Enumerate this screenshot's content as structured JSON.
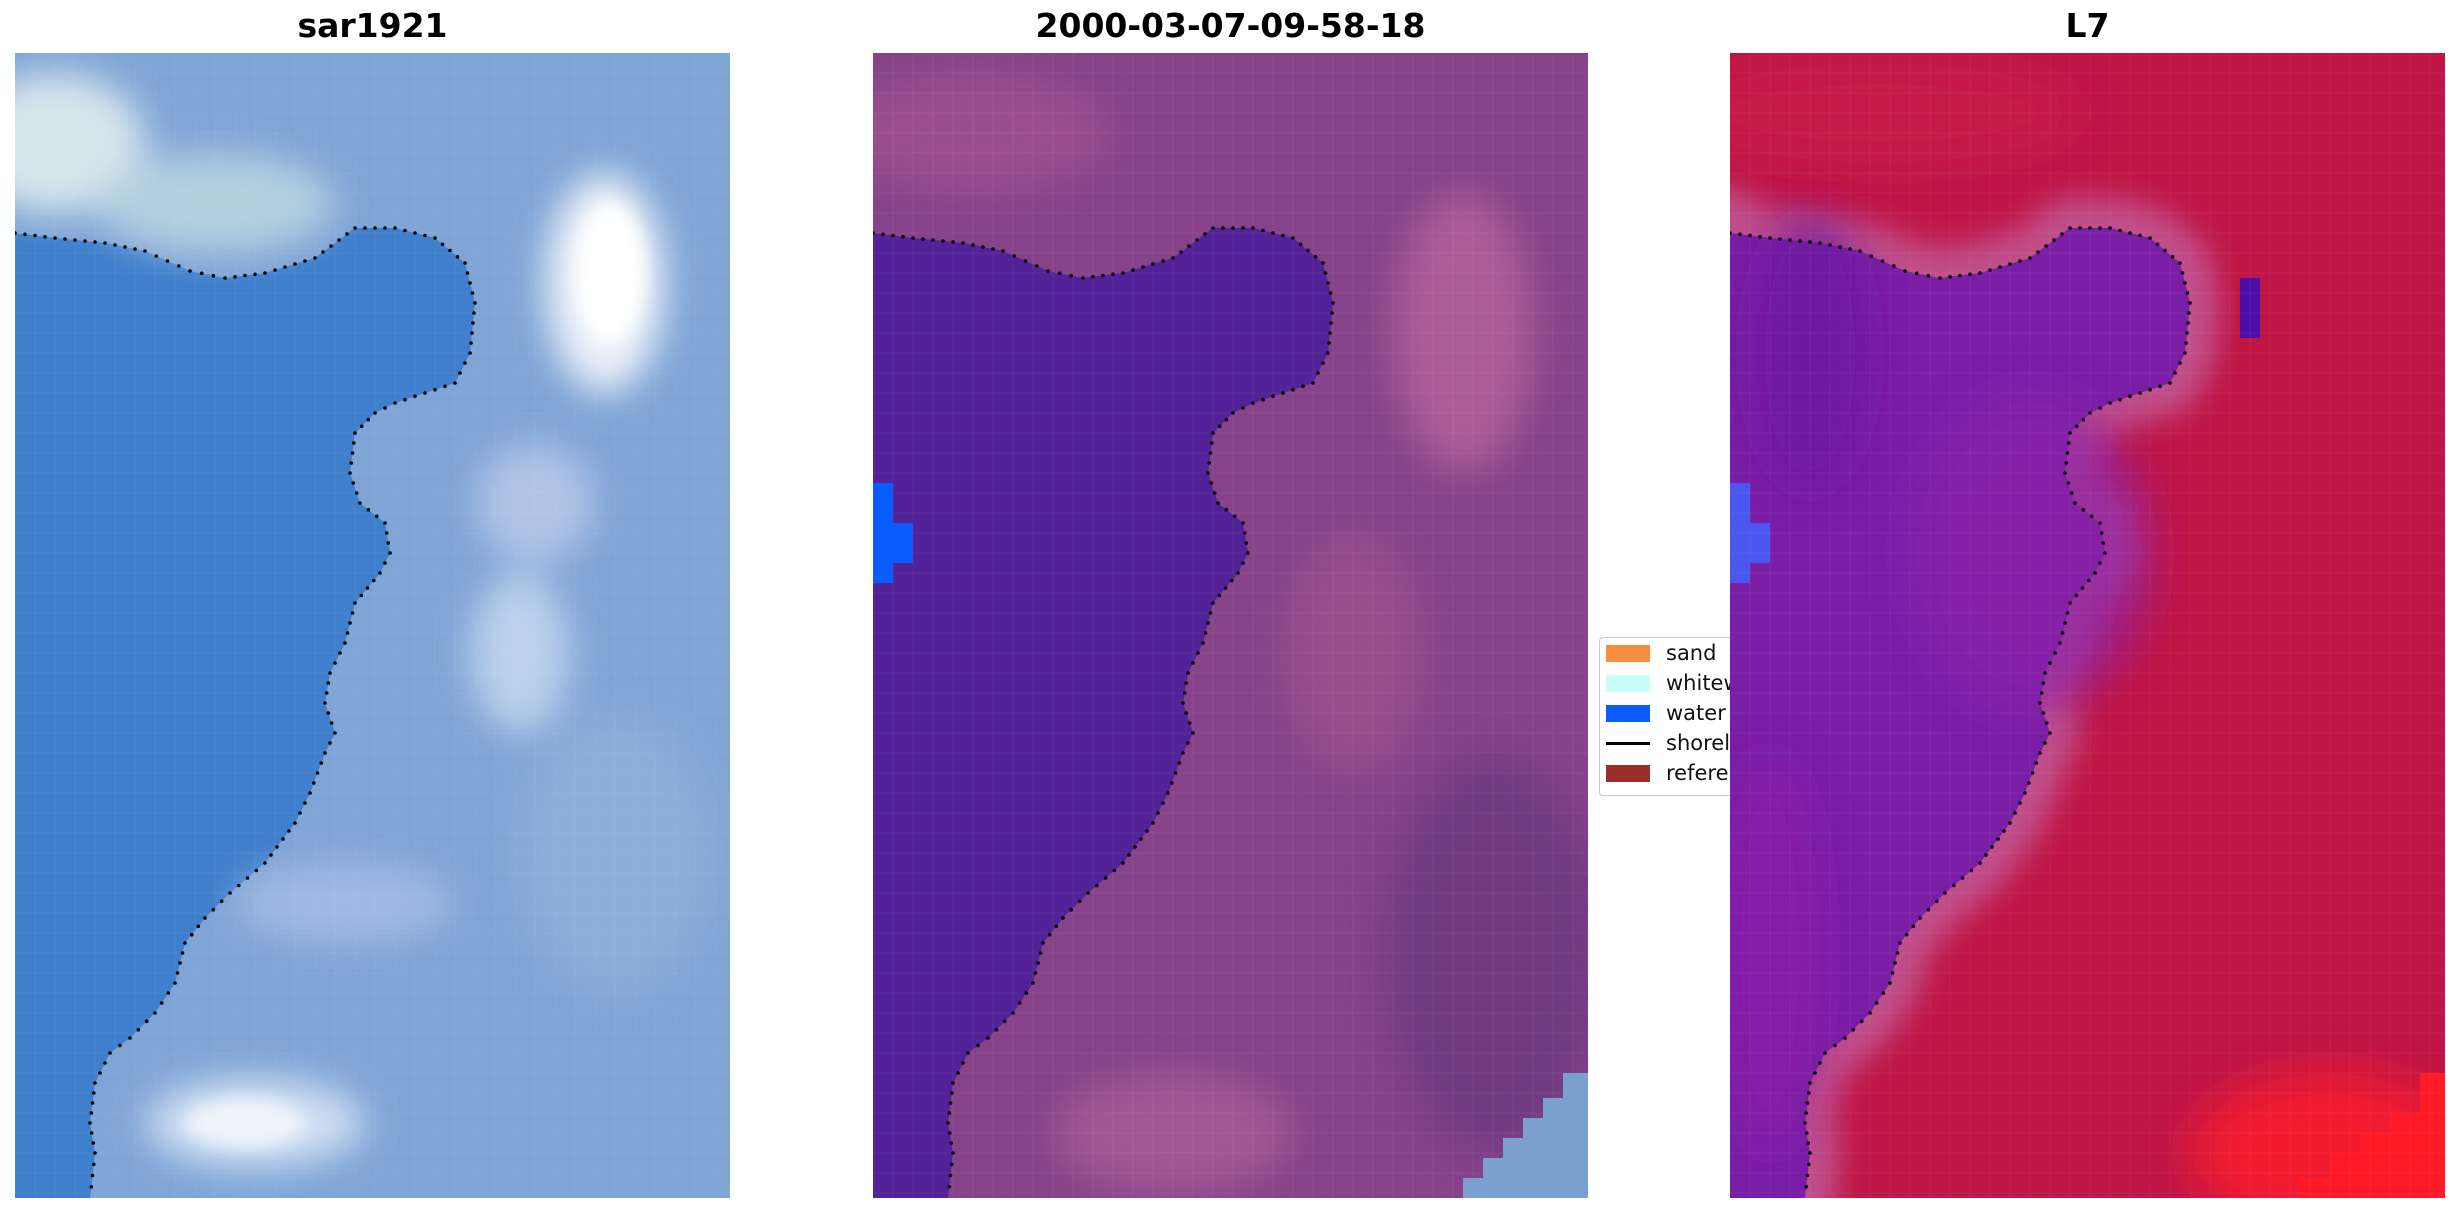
{
  "panels": [
    {
      "title": "sar1921"
    },
    {
      "title": "2000-03-07-09-58-18"
    },
    {
      "title": "L7"
    }
  ],
  "legend": {
    "items": [
      {
        "label": "sand",
        "color": "#f68d3f",
        "kind": "patch"
      },
      {
        "label": "whitewater",
        "color": "#c8fdf8",
        "kind": "patch"
      },
      {
        "label": "water",
        "color": "#0a5cff",
        "kind": "patch"
      },
      {
        "label": "shoreline",
        "color": "#000000",
        "kind": "line"
      },
      {
        "label": "reference shoreline",
        "color": "#9b2d2d",
        "kind": "patch"
      }
    ]
  },
  "colors": {
    "rgb_water": "#3f7fcc",
    "rgb_land": "#8fa7d6",
    "class_water": "#532298",
    "class_land": "#8a3f8a",
    "index_water": "#7a1ea6",
    "index_land": "#c01848"
  }
}
